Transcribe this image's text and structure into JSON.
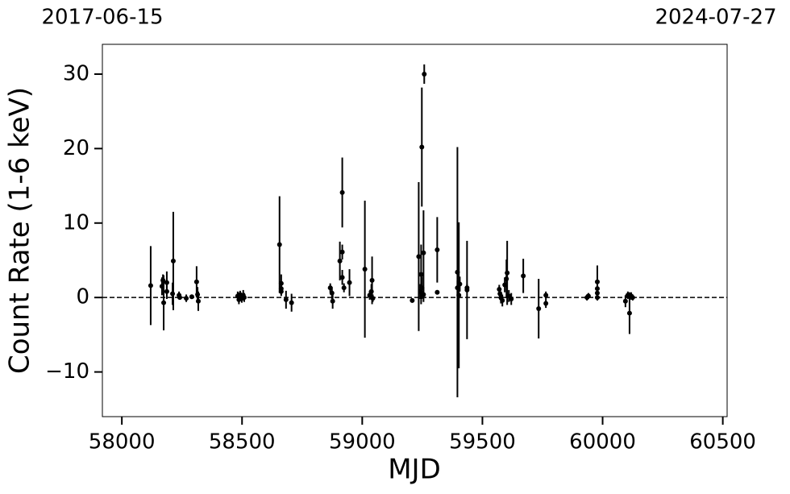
{
  "chart_data": {
    "type": "errorbar",
    "xlabel": "MJD",
    "ylabel": "Count Rate (1-6 keV)",
    "xlim": [
      57919,
      60518
    ],
    "ylim": [
      -16,
      34
    ],
    "xticks": [
      58000,
      58500,
      59000,
      59500,
      60000,
      60500
    ],
    "yticks": [
      {
        "value": -10,
        "label": "−10"
      },
      0,
      10,
      20,
      30
    ],
    "x2ticks": [
      {
        "value": 57919,
        "label": "2017-06-15"
      },
      {
        "value": 60518,
        "label": "2024-07-27"
      }
    ],
    "hline": 0,
    "color": "#000000",
    "x": [
      58120,
      58167,
      58171,
      58174,
      58187,
      58187,
      58211,
      58214,
      58238,
      58241,
      58268,
      58291,
      58311,
      58315,
      58318,
      58482,
      58487,
      58492,
      58499,
      58505,
      58509,
      58656,
      58663,
      58663,
      58663,
      58683,
      58706,
      58867,
      58874,
      58877,
      58907,
      58917,
      58917,
      58917,
      58924,
      58947,
      59011,
      59031,
      59038,
      59041,
      59044,
      59208,
      59235,
      59242,
      59245,
      59248,
      59248,
      59255,
      59255,
      59258,
      59312,
      59312,
      59396,
      59396,
      59402,
      59406,
      59436,
      59436,
      59570,
      59573,
      59577,
      59583,
      59593,
      59600,
      59603,
      59610,
      59620,
      59670,
      59734,
      59764,
      59764,
      59935,
      59941,
      59978,
      59978,
      59978,
      59978,
      60095,
      60105,
      60112,
      60119,
      60125
    ],
    "y": [
      1.6,
      1.5,
      2.3,
      -0.7,
      2.0,
      0.8,
      0.5,
      4.9,
      0.3,
      0.0,
      -0.1,
      0.1,
      2.1,
      0.4,
      -0.5,
      0.2,
      -0.3,
      0.4,
      -0.1,
      0.3,
      0.0,
      7.1,
      1.9,
      1.2,
      0.8,
      -0.3,
      -0.7,
      1.3,
      0.6,
      -0.5,
      4.9,
      6.1,
      14.1,
      2.7,
      1.3,
      2.0,
      3.8,
      0.3,
      0.8,
      2.3,
      -0.1,
      -0.4,
      5.5,
      0.8,
      3.1,
      20.2,
      1.3,
      6.0,
      0.4,
      30.0,
      6.4,
      0.7,
      3.4,
      1.3,
      0.3,
      1.8,
      1.0,
      1.3,
      1.1,
      0.5,
      0.0,
      -0.4,
      1.7,
      2.5,
      3.3,
      0.2,
      -0.2,
      2.9,
      -1.5,
      0.3,
      -0.8,
      0.0,
      0.2,
      2.1,
      1.2,
      0.6,
      0.0,
      -0.5,
      0.3,
      -2.1,
      0.2,
      0.0
    ],
    "err": [
      5.3,
      1.2,
      0.8,
      3.7,
      1.5,
      1.0,
      1.5,
      6.6,
      0.5,
      0.3,
      0.5,
      0.3,
      2.1,
      1.0,
      1.3,
      0.6,
      0.6,
      0.5,
      0.6,
      0.7,
      0.6,
      6.5,
      1.2,
      0.8,
      0.6,
      1.2,
      1.2,
      0.6,
      0.8,
      1.0,
      2.6,
      1.0,
      4.7,
      1.0,
      0.6,
      1.8,
      9.2,
      0.6,
      1.0,
      3.2,
      0.5,
      0.3,
      10.0,
      1.0,
      4.0,
      8.0,
      1.5,
      5.7,
      1.0,
      1.3,
      4.4,
      0.3,
      16.8,
      1.0,
      9.8,
      1.0,
      6.6,
      0.5,
      0.6,
      0.8,
      0.8,
      0.8,
      1.0,
      2.6,
      4.3,
      0.8,
      0.8,
      2.3,
      4.0,
      0.5,
      0.6,
      0.4,
      0.4,
      2.2,
      0.8,
      0.6,
      0.4,
      0.8,
      0.5,
      2.8,
      0.5,
      0.4
    ]
  }
}
